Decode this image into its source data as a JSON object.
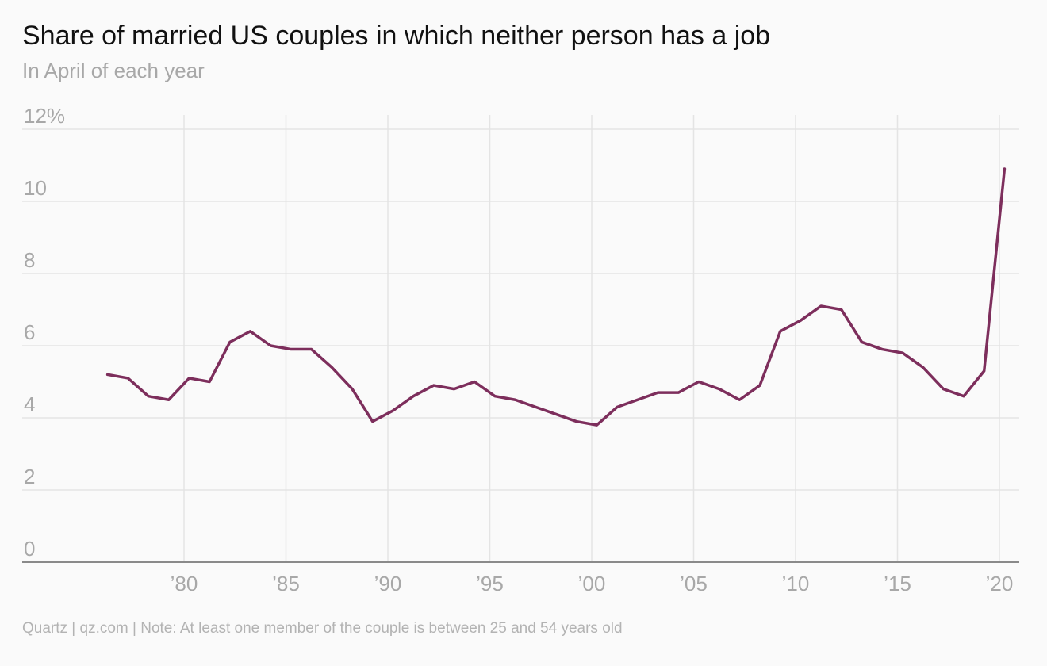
{
  "header": {
    "title": "Share of married US couples in which neither person has a job",
    "subtitle": "In April of each year"
  },
  "footer": {
    "note": "Quartz | qz.com | Note: At least one member of the couple is between 25 and 54 years old"
  },
  "colors": {
    "line": "#7d2e5c",
    "grid": "#e4e4e4",
    "axis": "#8a8a8a",
    "label": "#a8a8a8"
  },
  "chart_data": {
    "type": "line",
    "title": "Share of married US couples in which neither person has a job",
    "subtitle": "In April of each year",
    "xlabel": "",
    "ylabel": "",
    "xlim": [
      1975,
      2021
    ],
    "ylim": [
      0,
      12
    ],
    "grid": true,
    "legend": "none",
    "y_ticks": [
      0,
      2,
      4,
      6,
      8,
      10,
      12
    ],
    "y_tick_labels": [
      "0",
      "2",
      "4",
      "6",
      "8",
      "10",
      "12%"
    ],
    "x_ticks": [
      1980,
      1985,
      1990,
      1995,
      2000,
      2005,
      2010,
      2015,
      2020
    ],
    "x_tick_labels": [
      "’80",
      "’85",
      "’90",
      "’95",
      "’00",
      "’05",
      "’10",
      "’15",
      "’20"
    ],
    "series": [
      {
        "x": [
          1976,
          1977,
          1978,
          1979,
          1980,
          1981,
          1982,
          1983,
          1984,
          1985,
          1986,
          1987,
          1988,
          1989,
          1990,
          1991,
          1992,
          1993,
          1994,
          1995,
          1996,
          1997,
          1998,
          1999,
          2000,
          2001,
          2002,
          2003,
          2004,
          2005,
          2006,
          2007,
          2008,
          2009,
          2010,
          2011,
          2012,
          2013,
          2014,
          2015,
          2016,
          2017,
          2018,
          2019,
          2020
        ],
        "values": [
          5.2,
          5.1,
          4.6,
          4.5,
          5.1,
          5.0,
          6.1,
          6.4,
          6.0,
          5.9,
          5.9,
          5.4,
          4.8,
          3.9,
          4.2,
          4.6,
          4.9,
          4.8,
          5.0,
          4.6,
          4.5,
          4.3,
          4.1,
          3.9,
          3.8,
          4.3,
          4.5,
          4.7,
          4.7,
          5.0,
          4.8,
          4.5,
          4.9,
          6.4,
          6.7,
          7.1,
          7.0,
          6.1,
          5.9,
          5.8,
          5.4,
          4.8,
          4.6,
          5.3,
          10.9
        ]
      }
    ]
  }
}
